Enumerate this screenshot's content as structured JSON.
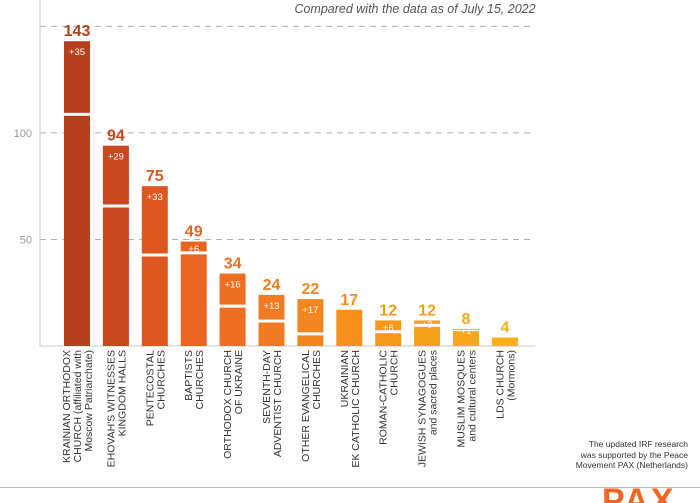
{
  "header": {
    "subtitle": "Compared with the data as of July 15, 2022"
  },
  "chart_data": {
    "type": "bar",
    "ylim": [
      0,
      160
    ],
    "yticks": [
      50,
      100
    ],
    "grid": true,
    "categories": [
      [
        "KRAINIAN ORTHODOX",
        "CHURCH (affiliated with",
        "Moscow Patriarchate)"
      ],
      [
        "EHOVAH'S WITNESSES",
        "KINGDOM HALLS"
      ],
      [
        "PENTECOSTAL",
        "CHURCHES"
      ],
      [
        "BAPTISTS",
        "CHURCHES"
      ],
      [
        "ORTHODOX CHURCH",
        "OF UKRAINE"
      ],
      [
        "SEVENTH-DAY",
        "ADVENTIST CHURCH"
      ],
      [
        "OTHER EVANGELICAL",
        "CHURCHES"
      ],
      [
        "UKRAINIAN",
        "EK CATHOLIC CHURCH"
      ],
      [
        "ROMAN-CATHOLIC",
        "CHURCH"
      ],
      [
        "JEWISH SYNAGOGUES",
        "and sacred places"
      ],
      [
        "MUSLIM MOSQUES",
        "and cultural centers"
      ],
      [
        "LDS CHURCH",
        "(Mormons)"
      ]
    ],
    "series": [
      {
        "values": [
          108,
          65,
          42,
          43,
          18,
          11,
          5,
          17,
          6,
          9,
          7,
          4
        ]
      },
      {
        "values": [
          35,
          29,
          33,
          6,
          16,
          13,
          17,
          0,
          6,
          3,
          1,
          0
        ]
      }
    ],
    "totals": [
      "143",
      "94",
      "75",
      "49",
      "34",
      "24",
      "22",
      "17",
      "12",
      "12",
      "8",
      "4"
    ],
    "increase_labels": [
      "+35",
      "+29",
      "+33",
      "+6",
      "+16",
      "+13",
      "+17",
      "",
      "+6",
      "+3",
      "+1",
      ""
    ],
    "colors": [
      "#b5401c",
      "#c9471d",
      "#e0561f",
      "#ea6420",
      "#ee6f22",
      "#f07b22",
      "#f3861f",
      "#f5901c",
      "#f6981a",
      "#f7a01a",
      "#f8a81a",
      "#f9b01a"
    ],
    "axis_color": "#c8c8c8",
    "tick_color": "#9a9a9a"
  },
  "footnote": {
    "lines": [
      "The updated IRF research",
      "was supported by the Peace",
      "Movement PAX (Netherlands)"
    ]
  },
  "logo": {
    "text": "PAX",
    "color": "#f26522"
  }
}
